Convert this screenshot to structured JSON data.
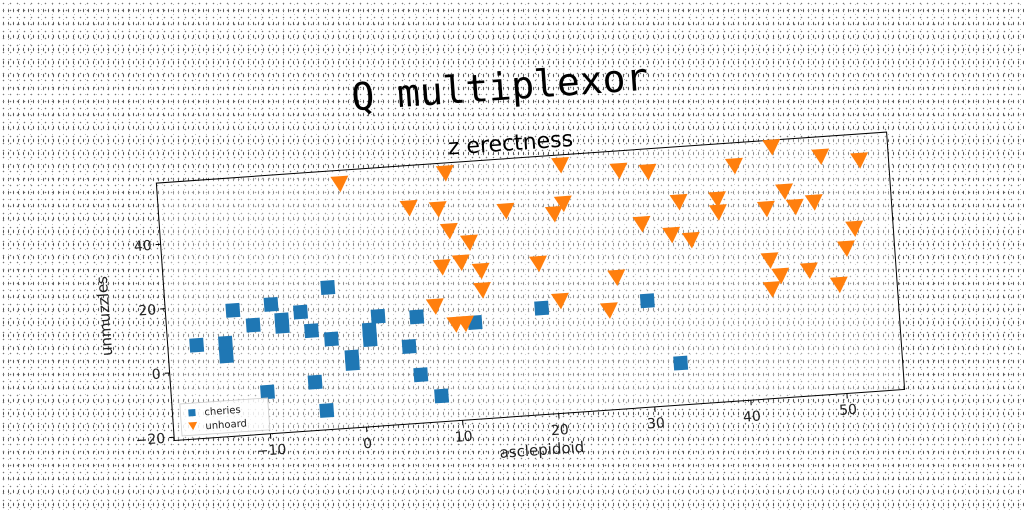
{
  "chart_data": {
    "type": "scatter",
    "suptitle": "Q multiplexor",
    "title": "z erectness",
    "xlabel": "asclepidoid",
    "ylabel": "unmuzzles",
    "xlim": [
      -20,
      56
    ],
    "ylim": [
      -21,
      59
    ],
    "xticks": [
      -10,
      0,
      10,
      20,
      30,
      40,
      50
    ],
    "xtick_labels": [
      "−10",
      "0",
      "10",
      "20",
      "30",
      "40",
      "50"
    ],
    "yticks": [
      -20,
      0,
      20,
      40
    ],
    "ytick_labels": [
      "−20",
      "0",
      "20",
      "40"
    ],
    "grid": false,
    "legend_position": "lower-left",
    "series": [
      {
        "name": "cheries",
        "marker": "square",
        "color": "#1f77b4",
        "points": [
          [
            -17,
            8
          ],
          [
            -14,
            8
          ],
          [
            -14,
            4
          ],
          [
            -13,
            18
          ],
          [
            -11,
            13
          ],
          [
            -9,
            19
          ],
          [
            -8,
            14
          ],
          [
            -8,
            12
          ],
          [
            -6,
            16
          ],
          [
            -5,
            10
          ],
          [
            -3,
            23
          ],
          [
            -3,
            7
          ],
          [
            -1,
            1
          ],
          [
            -1,
            -1
          ],
          [
            1,
            9
          ],
          [
            1,
            6
          ],
          [
            2,
            13
          ],
          [
            5,
            3
          ],
          [
            6,
            12
          ],
          [
            6,
            -6
          ],
          [
            -10,
            -8
          ],
          [
            -5,
            -6
          ],
          [
            -4,
            -15
          ],
          [
            8,
            -13
          ],
          [
            12,
            9
          ],
          [
            19,
            12
          ],
          [
            30,
            12
          ],
          [
            33,
            -8
          ]
        ]
      },
      {
        "name": "unhoard",
        "marker": "triangle_down",
        "color": "#ff7f0e",
        "points": [
          [
            -1,
            55
          ],
          [
            10,
            56
          ],
          [
            22,
            56
          ],
          [
            28,
            53
          ],
          [
            31,
            52
          ],
          [
            40,
            52
          ],
          [
            44,
            57
          ],
          [
            49,
            53
          ],
          [
            53,
            51
          ],
          [
            6,
            46
          ],
          [
            9,
            45
          ],
          [
            16,
            43
          ],
          [
            22,
            44
          ],
          [
            21,
            41
          ],
          [
            10,
            38
          ],
          [
            12,
            34
          ],
          [
            34,
            42
          ],
          [
            38,
            42
          ],
          [
            38,
            38
          ],
          [
            45,
            43
          ],
          [
            30,
            36
          ],
          [
            33,
            32
          ],
          [
            35,
            30
          ],
          [
            43,
            38
          ],
          [
            46,
            38
          ],
          [
            48,
            39
          ],
          [
            52,
            30
          ],
          [
            9,
            27
          ],
          [
            11,
            28
          ],
          [
            13,
            25
          ],
          [
            13,
            19
          ],
          [
            19,
            26
          ],
          [
            27,
            20
          ],
          [
            51,
            24
          ],
          [
            43,
            22
          ],
          [
            44,
            17
          ],
          [
            47,
            18
          ],
          [
            50,
            13
          ],
          [
            8,
            15
          ],
          [
            10,
            9
          ],
          [
            11,
            9
          ],
          [
            21,
            14
          ],
          [
            26,
            10
          ],
          [
            43,
            13
          ]
        ]
      }
    ]
  }
}
